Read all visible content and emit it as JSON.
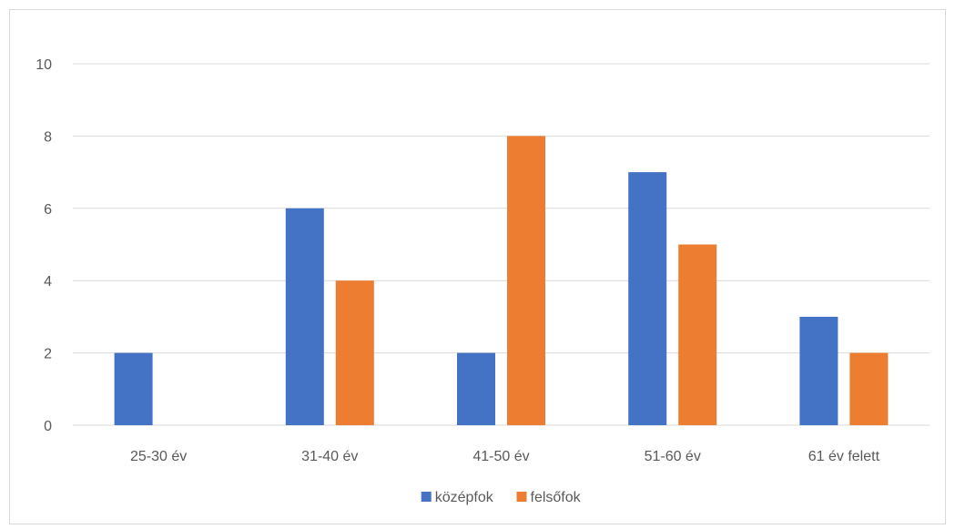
{
  "chart_data": {
    "type": "bar",
    "categories": [
      "25-30 év",
      "31-40 év",
      "41-50 év",
      "51-60 év",
      "61 év felett"
    ],
    "series": [
      {
        "name": "középfok",
        "values": [
          2,
          6,
          2,
          7,
          3
        ],
        "color": "#4472c4"
      },
      {
        "name": "felsőfok",
        "values": [
          0,
          4,
          8,
          5,
          2
        ],
        "color": "#ed7d31"
      }
    ],
    "title": "",
    "xlabel": "",
    "ylabel": "",
    "ylim": [
      0,
      10
    ],
    "yticks": [
      0,
      2,
      4,
      6,
      8,
      10
    ],
    "grid": true,
    "legend_position": "bottom"
  }
}
